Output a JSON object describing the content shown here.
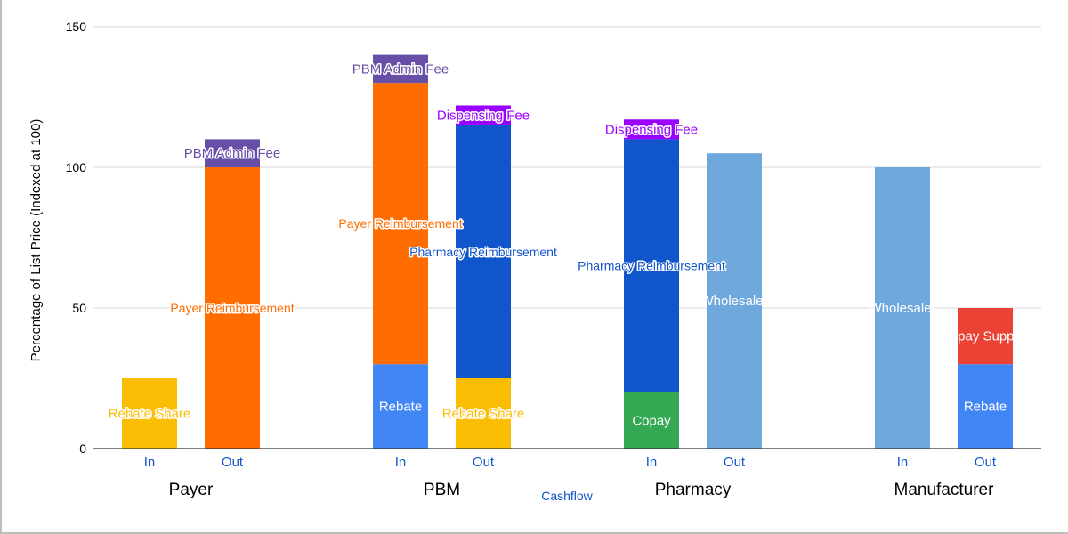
{
  "chart_data": {
    "type": "bar",
    "stacked": true,
    "ylabel": "Percentage of List Price (Indexed at 100)",
    "xlabel": "Cashflow",
    "ylim": [
      0,
      150
    ],
    "yticks": [
      0,
      50,
      100,
      150
    ],
    "grid": true,
    "groups": [
      {
        "name": "Payer",
        "bars": [
          {
            "label": "In",
            "segments": [
              {
                "name": "Rebate Share",
                "value": 25,
                "color": "#fbbc04",
                "text_color": "#fbbc04"
              }
            ]
          },
          {
            "label": "Out",
            "segments": [
              {
                "name": "Payer Reimbursement",
                "value": 100,
                "color": "#ff6d01",
                "text_color": "#ff6d01"
              },
              {
                "name": "PBM Admin Fee",
                "value": 10,
                "color": "#674ea7",
                "text_color": "#674ea7"
              }
            ]
          }
        ]
      },
      {
        "name": "PBM",
        "bars": [
          {
            "label": "In",
            "segments": [
              {
                "name": "Rebate",
                "value": 30,
                "color": "#4285f4",
                "text_color": "#ffffff"
              },
              {
                "name": "Payer Reimbursement",
                "value": 100,
                "color": "#ff6d01",
                "text_color": "#ff6d01"
              },
              {
                "name": "PBM Admin Fee",
                "value": 10,
                "color": "#674ea7",
                "text_color": "#674ea7"
              }
            ]
          },
          {
            "label": "Out",
            "segments": [
              {
                "name": "Rebate Share",
                "value": 25,
                "color": "#fbbc04",
                "text_color": "#fbbc04"
              },
              {
                "name": "Pharmacy Reimbursement",
                "value": 90,
                "color": "#1155cc",
                "text_color": "#1155cc"
              },
              {
                "name": "Dispensing Fee",
                "value": 7,
                "color": "#9900ff",
                "text_color": "#9900ff"
              }
            ]
          }
        ]
      },
      {
        "name": "Pharmacy",
        "bars": [
          {
            "label": "In",
            "segments": [
              {
                "name": "Copay",
                "value": 20,
                "color": "#34a853",
                "text_color": "#ffffff"
              },
              {
                "name": "Pharmacy Reimbursement",
                "value": 90,
                "color": "#1155cc",
                "text_color": "#1155cc"
              },
              {
                "name": "Dispensing Fee",
                "value": 7,
                "color": "#9900ff",
                "text_color": "#9900ff"
              }
            ]
          },
          {
            "label": "Out",
            "segments": [
              {
                "name": "Wholesaler",
                "value": 105,
                "color": "#6fa8dc",
                "text_color": "#ffffff"
              }
            ]
          }
        ]
      },
      {
        "name": "Manufacturer",
        "bars": [
          {
            "label": "In",
            "segments": [
              {
                "name": "Wholesaler",
                "value": 100,
                "color": "#6fa8dc",
                "text_color": "#ffffff"
              }
            ]
          },
          {
            "label": "Out",
            "segments": [
              {
                "name": "Rebate",
                "value": 30,
                "color": "#4285f4",
                "text_color": "#ffffff"
              },
              {
                "name": "Copay Support",
                "value": 20,
                "color": "#ea4335",
                "text_color": "#ffffff"
              }
            ]
          }
        ]
      }
    ]
  }
}
